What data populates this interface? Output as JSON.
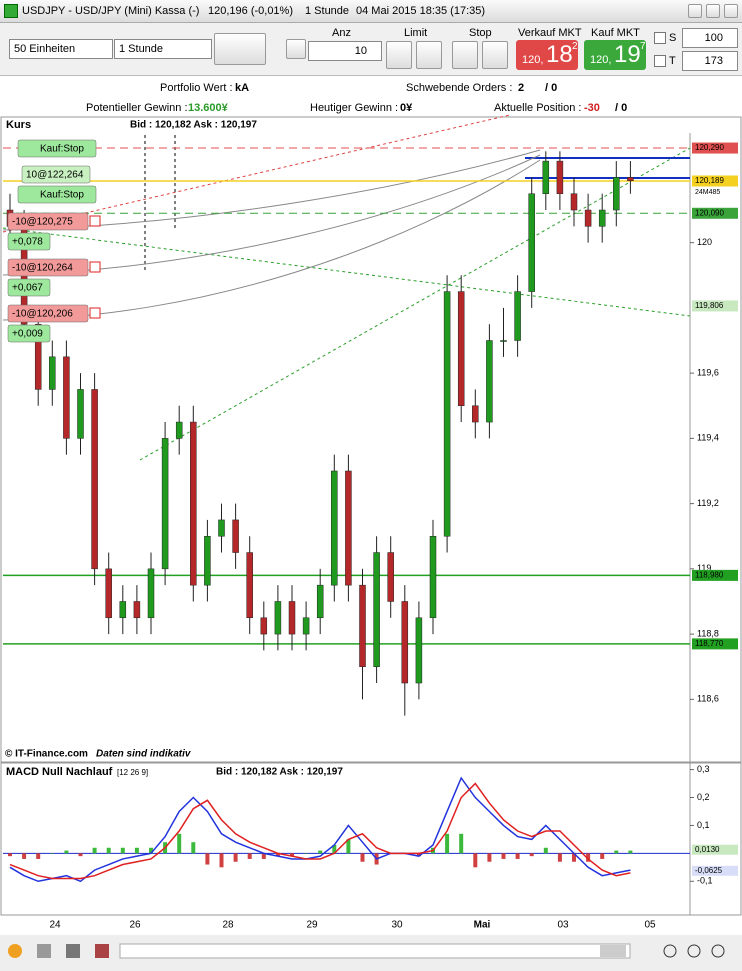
{
  "window": {
    "title": "USDJPY - USD/JPY (Mini) Kassa (-)",
    "quote": "120,196 (-0,01%)",
    "period": "1 Stunde",
    "timestamp": "04 Mai 2015 18:35 (17:35)"
  },
  "toolbar": {
    "units": "50 Einheiten",
    "interval": "1 Stunde",
    "anz_label": "Anz",
    "anz": "10",
    "limit_label": "Limit",
    "stop_label": "Stop",
    "sell_label": "Verkauf MKT",
    "sell_prefix": "120,",
    "sell_big": "18",
    "sell_sup": "2",
    "buy_label": "Kauf MKT",
    "buy_prefix": "120,",
    "buy_big": "19",
    "buy_sup": "7",
    "s_label": "S",
    "s_value": "100",
    "t_label": "T",
    "t_value": "173"
  },
  "info": {
    "portfolio_label": "Portfolio Wert :",
    "portfolio_value": "kA",
    "orders_label": "Schwebende Orders :",
    "orders_value": "2",
    "orders_rest": "/ 0",
    "potential_label": "Potentieller Gewinn :",
    "potential_value": "13.600¥",
    "today_label": "Heutiger Gewinn :",
    "today_value": "0¥",
    "position_label": "Aktuelle Position :",
    "position_value": "-30",
    "position_rest": "/ 0"
  },
  "orders": [
    {
      "text": "Kauf:Stop",
      "kind": "stop"
    },
    {
      "text": "10@122,264",
      "kind": "buy"
    },
    {
      "text": "Kauf:Stop",
      "kind": "stop"
    },
    {
      "text": "-10@120,275",
      "kind": "sell"
    },
    {
      "text": "+0,078",
      "kind": "pl"
    },
    {
      "text": "-10@120,264",
      "kind": "sell"
    },
    {
      "text": "+0,067",
      "kind": "pl"
    },
    {
      "text": "-10@120,206",
      "kind": "sell"
    },
    {
      "text": "+0,009",
      "kind": "pl"
    }
  ],
  "chart_data": [
    {
      "type": "candlestick",
      "title": "Kurs",
      "bid_ask": "Bid : 120,182 Ask : 120,197",
      "credit": "© IT-Finance.com",
      "disclaimer": "Daten sind indikativ",
      "up_color": "#1f9a1f",
      "down_color": "#b5282a",
      "open": [
        120.1,
        120.05,
        119.75,
        119.55,
        119.65,
        119.4,
        119.55,
        119.0,
        118.85,
        118.9,
        118.85,
        119.0,
        119.4,
        119.45,
        118.95,
        119.1,
        119.15,
        119.05,
        118.85,
        118.8,
        118.9,
        118.8,
        118.85,
        118.95,
        119.3,
        118.95,
        118.7,
        119.05,
        118.9,
        118.65,
        118.85,
        119.1,
        119.85,
        119.5,
        119.45,
        119.7,
        119.7,
        119.85,
        120.15,
        120.25,
        120.15,
        120.1,
        120.05,
        120.1,
        120.2
      ],
      "high": [
        120.15,
        120.1,
        119.8,
        119.7,
        119.7,
        119.6,
        119.6,
        119.05,
        118.95,
        118.95,
        119.05,
        119.45,
        119.5,
        119.5,
        119.15,
        119.2,
        119.2,
        119.1,
        118.9,
        118.95,
        118.95,
        118.9,
        119.0,
        119.35,
        119.35,
        119.0,
        119.1,
        119.1,
        118.95,
        118.9,
        119.15,
        119.9,
        119.9,
        119.55,
        119.75,
        119.8,
        119.9,
        120.2,
        120.28,
        120.28,
        120.2,
        120.15,
        120.15,
        120.25,
        120.25
      ],
      "low": [
        120.0,
        119.7,
        119.5,
        119.5,
        119.35,
        119.35,
        118.95,
        118.8,
        118.8,
        118.8,
        118.8,
        118.95,
        119.35,
        118.9,
        118.9,
        119.05,
        119.0,
        118.8,
        118.75,
        118.75,
        118.75,
        118.75,
        118.8,
        118.9,
        118.9,
        118.6,
        118.65,
        118.85,
        118.55,
        118.6,
        118.8,
        119.05,
        119.45,
        119.4,
        119.4,
        119.65,
        119.65,
        119.8,
        120.1,
        120.1,
        120.05,
        120.0,
        120.0,
        120.05,
        120.15
      ],
      "close": [
        120.05,
        119.75,
        119.55,
        119.65,
        119.4,
        119.55,
        119.0,
        118.85,
        118.9,
        118.85,
        119.0,
        119.4,
        119.45,
        118.95,
        119.1,
        119.15,
        119.05,
        118.85,
        118.8,
        118.9,
        118.8,
        118.85,
        118.95,
        119.3,
        118.95,
        118.7,
        119.05,
        118.9,
        118.65,
        118.85,
        119.1,
        119.85,
        119.5,
        119.45,
        119.7,
        119.7,
        119.85,
        120.15,
        120.25,
        120.15,
        120.1,
        120.05,
        120.1,
        120.2,
        120.19
      ],
      "ylim": [
        118.46,
        120.33
      ],
      "yticks": [
        {
          "value": 118.6,
          "label": "118,6"
        },
        {
          "value": 118.8,
          "label": "118,8"
        },
        119,
        {
          "value": 119.2,
          "label": "119,2"
        },
        {
          "value": 119.4,
          "label": "119,4"
        },
        {
          "value": 119.6,
          "label": "119,6"
        },
        120
      ],
      "price_levels": [
        {
          "value": 120.29,
          "label": "120,290",
          "color": "#e05050",
          "style": "dashed"
        },
        {
          "value": 120.189,
          "label": "120,189",
          "color": "#f4d020",
          "style": "solid"
        },
        {
          "value": 120.09,
          "label": "120,090",
          "color": "#3aa33a",
          "style": "dashed"
        },
        {
          "value": 119.806,
          "label": "119,806",
          "color": "#c8e8c0",
          "style": "none"
        },
        {
          "value": 118.98,
          "label": "118,980",
          "color": "#22a022",
          "style": "solid"
        },
        {
          "value": 118.77,
          "label": "118,770",
          "color": "#22a022",
          "style": "solid"
        }
      ],
      "countdown": "24M485",
      "xlabels": [
        "24",
        "26",
        "28",
        "29",
        "30",
        "Mai",
        "03",
        "05"
      ]
    },
    {
      "type": "macd",
      "title": "MACD Null Nachlauf",
      "params": "[12 26 9]",
      "bid_ask": "Bid : 120,182 Ask : 120,197",
      "series": [
        {
          "name": "MACD",
          "color": "#2233dd",
          "values": [
            -0.05,
            -0.08,
            -0.1,
            -0.09,
            -0.08,
            -0.1,
            -0.06,
            -0.04,
            -0.02,
            -0.01,
            0.0,
            0.06,
            0.15,
            0.2,
            0.15,
            0.07,
            0.04,
            0.02,
            0.0,
            -0.01,
            -0.02,
            -0.02,
            -0.01,
            0.03,
            0.1,
            0.04,
            -0.02,
            0.0,
            0.0,
            -0.01,
            0.03,
            0.15,
            0.27,
            0.2,
            0.15,
            0.1,
            0.06,
            0.05,
            0.1,
            0.05,
            0.0,
            -0.05,
            -0.08,
            -0.07,
            -0.06
          ]
        },
        {
          "name": "Signal",
          "color": "#e02020",
          "values": [
            -0.04,
            -0.06,
            -0.08,
            -0.09,
            -0.09,
            -0.09,
            -0.08,
            -0.06,
            -0.04,
            -0.03,
            -0.02,
            0.02,
            0.08,
            0.16,
            0.19,
            0.12,
            0.07,
            0.04,
            0.02,
            0.0,
            -0.01,
            -0.02,
            -0.02,
            0.0,
            0.05,
            0.07,
            0.02,
            0.0,
            0.0,
            0.0,
            0.01,
            0.08,
            0.2,
            0.25,
            0.18,
            0.12,
            0.08,
            0.06,
            0.08,
            0.08,
            0.03,
            -0.02,
            -0.06,
            -0.08,
            -0.07
          ]
        }
      ],
      "histogram": [
        -0.01,
        -0.02,
        -0.02,
        0.0,
        0.01,
        -0.01,
        0.02,
        0.02,
        0.02,
        0.02,
        0.02,
        0.04,
        0.07,
        0.04,
        -0.04,
        -0.05,
        -0.03,
        -0.02,
        -0.02,
        -0.01,
        -0.01,
        0.0,
        0.01,
        0.03,
        0.05,
        -0.03,
        -0.04,
        0.0,
        0.0,
        -0.01,
        0.02,
        0.07,
        0.07,
        -0.05,
        -0.03,
        -0.02,
        -0.02,
        -0.01,
        0.02,
        -0.03,
        -0.03,
        -0.03,
        -0.02,
        0.01,
        0.01
      ],
      "hist_up_color": "#3cb83c",
      "hist_down_color": "#d04040",
      "ylim": [
        -0.21,
        0.32
      ],
      "yticks": [
        {
          "value": -0.1,
          "label": "-0,1"
        },
        {
          "value": 0.1,
          "label": "0,1"
        },
        {
          "value": 0.2,
          "label": "0,2"
        },
        {
          "value": 0.3,
          "label": "0,3"
        }
      ],
      "price_levels": [
        {
          "value": 0.013,
          "label": "0,0130",
          "color": "#c8e8c0"
        },
        {
          "value": -0.0625,
          "label": "-0,0625",
          "color": "#d8def8"
        }
      ]
    }
  ]
}
